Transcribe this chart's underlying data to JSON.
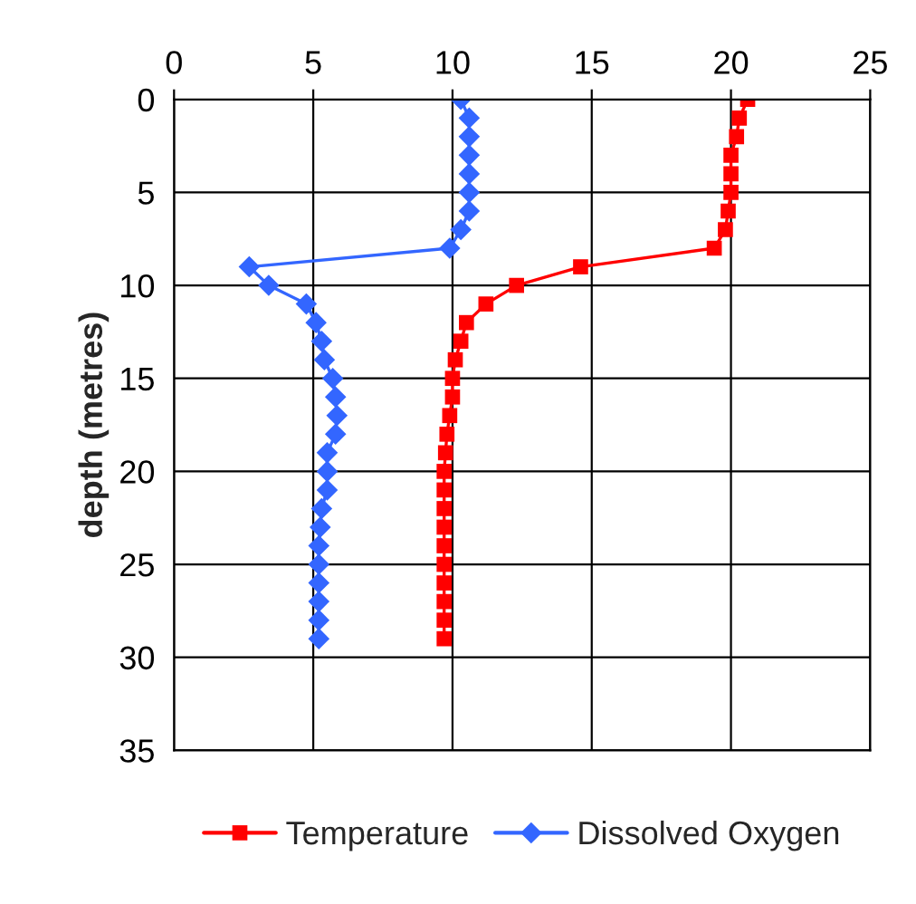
{
  "chart_data": {
    "type": "line",
    "ylabel": "depth (metres)",
    "xlim": [
      0,
      25
    ],
    "xticks": [
      0,
      5,
      10,
      15,
      20,
      25
    ],
    "ylim": [
      35,
      0
    ],
    "yticks": [
      0,
      5,
      10,
      15,
      20,
      25,
      30,
      35
    ],
    "grid": true,
    "legend": "bottom",
    "series": [
      {
        "name": "Temperature",
        "color": "#ff0000",
        "marker": "square",
        "x": [
          20.6,
          20.3,
          20.2,
          20.0,
          20.0,
          20.0,
          19.9,
          19.8,
          19.4,
          14.6,
          12.3,
          11.2,
          10.5,
          10.3,
          10.1,
          10.0,
          10.0,
          9.9,
          9.8,
          9.75,
          9.7,
          9.7,
          9.7,
          9.7,
          9.7,
          9.7,
          9.7,
          9.7,
          9.7,
          9.7
        ],
        "values": [
          0,
          1,
          2,
          3,
          4,
          5,
          6,
          7,
          8,
          9,
          10,
          11,
          12,
          13,
          14,
          15,
          16,
          17,
          18,
          19,
          20,
          21,
          22,
          23,
          24,
          25,
          26,
          27,
          28,
          29
        ]
      },
      {
        "name": "Dissolved Oxygen",
        "color": "#3366ff",
        "marker": "diamond",
        "x": [
          10.3,
          10.6,
          10.6,
          10.6,
          10.6,
          10.6,
          10.6,
          10.3,
          9.9,
          2.7,
          3.4,
          4.75,
          5.1,
          5.3,
          5.4,
          5.7,
          5.8,
          5.85,
          5.8,
          5.5,
          5.5,
          5.5,
          5.3,
          5.25,
          5.2,
          5.2,
          5.2,
          5.2,
          5.2,
          5.2
        ],
        "values": [
          0,
          1,
          2,
          3,
          4,
          5,
          6,
          7,
          8,
          9,
          10,
          11,
          12,
          13,
          14,
          15,
          16,
          17,
          18,
          19,
          20,
          21,
          22,
          23,
          24,
          25,
          26,
          27,
          28,
          29
        ]
      }
    ]
  }
}
